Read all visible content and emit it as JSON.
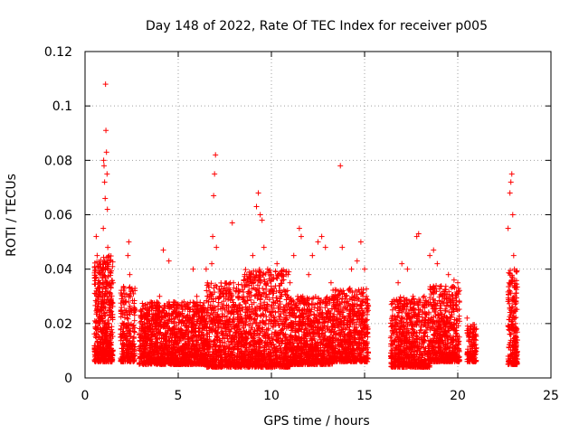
{
  "chart_data": {
    "type": "scatter",
    "title": "Day 148 of 2022, Rate Of TEC Index for receiver p005",
    "xlabel": "GPS time / hours",
    "ylabel": "ROTI / TECUs",
    "xlim": [
      0,
      25
    ],
    "ylim": [
      0,
      0.12
    ],
    "xticks": [
      0,
      5,
      10,
      15,
      20,
      25
    ],
    "yticks": [
      0,
      0.02,
      0.04,
      0.06,
      0.08,
      0.1,
      0.12
    ],
    "xtick_labels": [
      "0",
      "5",
      "10",
      "15",
      "20",
      "25"
    ],
    "ytick_labels": [
      "0",
      "0.02",
      "0.04",
      "0.06",
      "0.08",
      "0.1",
      "0.12"
    ],
    "grid": true,
    "marker": "+",
    "color": "#ff0000",
    "series": [
      {
        "points": [
          [
            0.6,
            0.052
          ],
          [
            0.65,
            0.045
          ],
          [
            0.7,
            0.035
          ],
          [
            0.72,
            0.028
          ],
          [
            0.75,
            0.02
          ],
          [
            0.78,
            0.015
          ],
          [
            0.8,
            0.012
          ],
          [
            0.85,
            0.018
          ],
          [
            0.9,
            0.025
          ],
          [
            0.92,
            0.033
          ],
          [
            0.95,
            0.04
          ],
          [
            0.98,
            0.055
          ],
          [
            1.0,
            0.08
          ],
          [
            1.02,
            0.078
          ],
          [
            1.05,
            0.072
          ],
          [
            1.08,
            0.066
          ],
          [
            1.1,
            0.108
          ],
          [
            1.12,
            0.091
          ],
          [
            1.15,
            0.083
          ],
          [
            1.18,
            0.075
          ],
          [
            1.2,
            0.062
          ],
          [
            1.22,
            0.048
          ],
          [
            1.25,
            0.04
          ],
          [
            1.28,
            0.03
          ],
          [
            1.3,
            0.02
          ],
          [
            1.35,
            0.012
          ],
          [
            1.4,
            0.01
          ],
          [
            2.0,
            0.03
          ],
          [
            2.1,
            0.02
          ],
          [
            2.2,
            0.015
          ],
          [
            2.3,
            0.045
          ],
          [
            2.35,
            0.05
          ],
          [
            2.4,
            0.038
          ],
          [
            2.45,
            0.025
          ],
          [
            2.5,
            0.012
          ],
          [
            2.6,
            0.008
          ],
          [
            3.0,
            0.025
          ],
          [
            3.2,
            0.018
          ],
          [
            3.5,
            0.012
          ],
          [
            3.8,
            0.02
          ],
          [
            4.0,
            0.03
          ],
          [
            4.2,
            0.047
          ],
          [
            4.5,
            0.043
          ],
          [
            4.8,
            0.025
          ],
          [
            5.0,
            0.018
          ],
          [
            5.5,
            0.022
          ],
          [
            5.8,
            0.04
          ],
          [
            6.0,
            0.03
          ],
          [
            6.3,
            0.025
          ],
          [
            6.5,
            0.04
          ],
          [
            6.8,
            0.042
          ],
          [
            6.85,
            0.052
          ],
          [
            6.9,
            0.067
          ],
          [
            6.95,
            0.075
          ],
          [
            7.0,
            0.082
          ],
          [
            7.05,
            0.048
          ],
          [
            7.2,
            0.03
          ],
          [
            7.5,
            0.025
          ],
          [
            7.8,
            0.035
          ],
          [
            7.9,
            0.057
          ],
          [
            8.2,
            0.03
          ],
          [
            8.5,
            0.02
          ],
          [
            8.8,
            0.025
          ],
          [
            9.0,
            0.045
          ],
          [
            9.2,
            0.063
          ],
          [
            9.3,
            0.068
          ],
          [
            9.4,
            0.06
          ],
          [
            9.5,
            0.058
          ],
          [
            9.6,
            0.048
          ],
          [
            9.8,
            0.04
          ],
          [
            10.0,
            0.038
          ],
          [
            10.3,
            0.042
          ],
          [
            10.5,
            0.03
          ],
          [
            10.7,
            0.025
          ],
          [
            11.0,
            0.035
          ],
          [
            11.2,
            0.045
          ],
          [
            11.5,
            0.055
          ],
          [
            11.6,
            0.052
          ],
          [
            12.0,
            0.038
          ],
          [
            12.2,
            0.045
          ],
          [
            12.5,
            0.05
          ],
          [
            12.7,
            0.052
          ],
          [
            12.9,
            0.048
          ],
          [
            13.2,
            0.035
          ],
          [
            13.5,
            0.03
          ],
          [
            13.7,
            0.078
          ],
          [
            13.8,
            0.048
          ],
          [
            14.0,
            0.03
          ],
          [
            14.3,
            0.04
          ],
          [
            14.6,
            0.043
          ],
          [
            14.8,
            0.05
          ],
          [
            15.0,
            0.04
          ],
          [
            15.1,
            0.03
          ],
          [
            16.5,
            0.025
          ],
          [
            16.8,
            0.035
          ],
          [
            17.0,
            0.042
          ],
          [
            17.3,
            0.04
          ],
          [
            17.6,
            0.03
          ],
          [
            17.8,
            0.052
          ],
          [
            17.9,
            0.053
          ],
          [
            18.2,
            0.03
          ],
          [
            18.5,
            0.045
          ],
          [
            18.7,
            0.047
          ],
          [
            18.9,
            0.042
          ],
          [
            19.2,
            0.03
          ],
          [
            19.5,
            0.038
          ],
          [
            19.8,
            0.036
          ],
          [
            20.0,
            0.035
          ],
          [
            20.5,
            0.022
          ],
          [
            20.7,
            0.018
          ],
          [
            20.9,
            0.012
          ],
          [
            22.7,
            0.055
          ],
          [
            22.8,
            0.068
          ],
          [
            22.85,
            0.072
          ],
          [
            22.9,
            0.075
          ],
          [
            22.95,
            0.06
          ],
          [
            23.0,
            0.045
          ],
          [
            23.05,
            0.03
          ],
          [
            23.1,
            0.02
          ],
          [
            23.15,
            0.012
          ]
        ],
        "bands": [
          {
            "x": [
              0.5,
              1.5
            ],
            "y": [
              0.006,
              0.045
            ],
            "n": 520
          },
          {
            "x": [
              1.9,
              2.7
            ],
            "y": [
              0.006,
              0.035
            ],
            "n": 240
          },
          {
            "x": [
              2.9,
              6.5
            ],
            "y": [
              0.005,
              0.028
            ],
            "n": 1300
          },
          {
            "x": [
              6.5,
              8.5
            ],
            "y": [
              0.004,
              0.035
            ],
            "n": 700
          },
          {
            "x": [
              8.5,
              11.0
            ],
            "y": [
              0.004,
              0.04
            ],
            "n": 900
          },
          {
            "x": [
              11.0,
              13.3
            ],
            "y": [
              0.005,
              0.03
            ],
            "n": 800
          },
          {
            "x": [
              13.3,
              15.2
            ],
            "y": [
              0.006,
              0.033
            ],
            "n": 650
          },
          {
            "x": [
              16.4,
              18.5
            ],
            "y": [
              0.004,
              0.03
            ],
            "n": 700
          },
          {
            "x": [
              18.5,
              20.1
            ],
            "y": [
              0.006,
              0.034
            ],
            "n": 550
          },
          {
            "x": [
              20.5,
              21.0
            ],
            "y": [
              0.006,
              0.02
            ],
            "n": 120
          },
          {
            "x": [
              22.7,
              23.2
            ],
            "y": [
              0.005,
              0.04
            ],
            "n": 240
          }
        ]
      }
    ]
  }
}
